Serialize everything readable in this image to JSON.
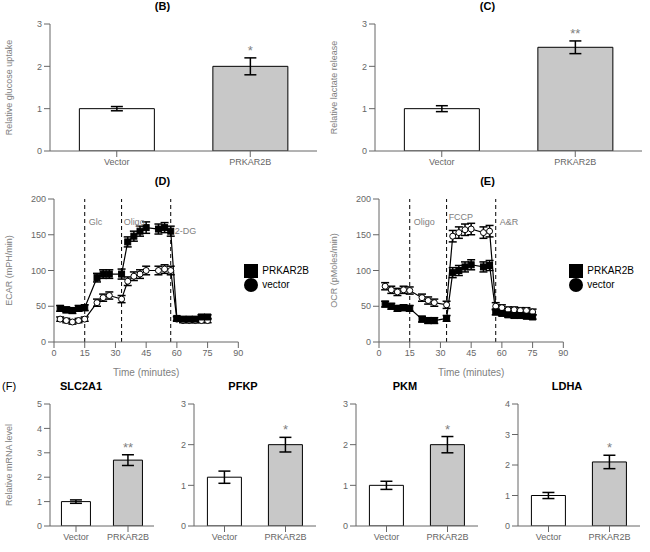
{
  "chart_data": [
    {
      "type": "bar",
      "title": "(B)",
      "ylabel": "Relative glucose uptake",
      "categories": [
        "Vector",
        "PRKAR2B"
      ],
      "values": [
        1.0,
        2.0
      ],
      "errors": [
        0.05,
        0.2
      ],
      "colors": [
        "#ffffff",
        "#c8c8c8"
      ],
      "ylim": [
        0,
        3
      ],
      "yticks": [
        0,
        1,
        2,
        3
      ],
      "annotations": [
        {
          "text": "*",
          "x": "PRKAR2B"
        }
      ]
    },
    {
      "type": "bar",
      "title": "(C)",
      "ylabel": "Relative lactate release",
      "categories": [
        "Vector",
        "PRKAR2B"
      ],
      "values": [
        1.0,
        2.45
      ],
      "errors": [
        0.07,
        0.15
      ],
      "colors": [
        "#ffffff",
        "#c8c8c8"
      ],
      "ylim": [
        0,
        3
      ],
      "yticks": [
        0,
        1,
        2,
        3
      ],
      "annotations": [
        {
          "text": "**",
          "x": "PRKAR2B"
        }
      ]
    },
    {
      "type": "line",
      "title": "(D)",
      "xlabel": "Time (minutes)",
      "ylabel": "ECAR (mPH/min)",
      "x": [
        3,
        6,
        9,
        12,
        15,
        21,
        24,
        27,
        33,
        36,
        39,
        42,
        45,
        51,
        54,
        57,
        60,
        63,
        66,
        69,
        72,
        75
      ],
      "series": [
        {
          "name": "vector",
          "color": "#000000",
          "marker": "circle",
          "values": [
            32,
            30,
            28,
            30,
            32,
            55,
            62,
            65,
            60,
            85,
            92,
            95,
            100,
            100,
            102,
            100,
            32,
            30,
            30,
            30,
            30,
            30
          ],
          "errors": [
            3,
            3,
            3,
            3,
            3,
            5,
            5,
            5,
            5,
            6,
            6,
            6,
            6,
            6,
            6,
            6,
            3,
            3,
            3,
            3,
            3,
            3
          ]
        },
        {
          "name": "PRKAR2B",
          "color": "#000000",
          "marker": "square",
          "values": [
            47,
            45,
            44,
            47,
            48,
            90,
            95,
            95,
            95,
            140,
            148,
            155,
            160,
            158,
            160,
            155,
            33,
            32,
            32,
            32,
            35,
            35
          ],
          "errors": [
            4,
            4,
            4,
            4,
            4,
            6,
            6,
            6,
            7,
            7,
            7,
            7,
            8,
            7,
            7,
            7,
            3,
            3,
            3,
            3,
            3,
            3
          ]
        }
      ],
      "xlim": [
        0,
        90
      ],
      "xticks": [
        0,
        15,
        30,
        45,
        60,
        75,
        90
      ],
      "ylim": [
        0,
        200
      ],
      "yticks": [
        0,
        50,
        100,
        150,
        200
      ],
      "vlines": [
        15,
        33,
        57
      ],
      "annotations": [
        {
          "text": "Glc",
          "x": 17,
          "y": 168
        },
        {
          "text": "Oligo",
          "x": 34,
          "y": 168
        },
        {
          "text": "2-DG",
          "x": 59,
          "y": 155
        }
      ],
      "legend": "right"
    },
    {
      "type": "line",
      "title": "(E)",
      "xlabel": "Time (minutes)",
      "ylabel": "OCR (pMoles/min)",
      "x": [
        3,
        6,
        9,
        12,
        15,
        21,
        24,
        27,
        33,
        36,
        39,
        42,
        45,
        51,
        54,
        57,
        60,
        63,
        66,
        69,
        72,
        75
      ],
      "series": [
        {
          "name": "vector",
          "color": "#000000",
          "marker": "circle",
          "values": [
            78,
            73,
            70,
            73,
            72,
            62,
            58,
            55,
            52,
            148,
            153,
            157,
            158,
            153,
            155,
            50,
            48,
            45,
            45,
            44,
            44,
            42
          ],
          "errors": [
            5,
            5,
            5,
            5,
            5,
            5,
            5,
            5,
            5,
            8,
            8,
            8,
            8,
            8,
            8,
            5,
            4,
            4,
            4,
            4,
            4,
            4
          ]
        },
        {
          "name": "PRKAR2B",
          "color": "#000000",
          "marker": "square",
          "values": [
            53,
            50,
            47,
            48,
            47,
            32,
            30,
            30,
            33,
            97,
            100,
            105,
            108,
            105,
            107,
            42,
            40,
            38,
            37,
            37,
            36,
            35
          ],
          "errors": [
            4,
            4,
            4,
            4,
            4,
            4,
            4,
            4,
            4,
            7,
            7,
            7,
            7,
            7,
            7,
            4,
            3,
            3,
            3,
            3,
            3,
            3
          ]
        }
      ],
      "xlim": [
        0,
        90
      ],
      "xticks": [
        0,
        15,
        30,
        45,
        60,
        75,
        90
      ],
      "ylim": [
        0,
        200
      ],
      "yticks": [
        0,
        50,
        100,
        150,
        200
      ],
      "vlines": [
        15,
        33,
        57
      ],
      "annotations": [
        {
          "text": "Oligo",
          "x": 17,
          "y": 168
        },
        {
          "text": "FCCP",
          "x": 34,
          "y": 175
        },
        {
          "text": "A&R",
          "x": 59,
          "y": 168
        }
      ],
      "legend": "right"
    },
    {
      "type": "bar",
      "title": "SLC2A1",
      "subtitle": "(F)",
      "ylabel": "Relative mRNA level",
      "categories": [
        "Vector",
        "PRKAR2B"
      ],
      "values": [
        1.0,
        2.7
      ],
      "errors": [
        0.07,
        0.22
      ],
      "colors": [
        "#ffffff",
        "#c8c8c8"
      ],
      "ylim": [
        0,
        5
      ],
      "yticks": [
        0,
        1,
        2,
        3,
        4,
        5
      ],
      "annotations": [
        {
          "text": "**",
          "x": "PRKAR2B"
        }
      ]
    },
    {
      "type": "bar",
      "title": "PFKP",
      "categories": [
        "Vector",
        "PRKAR2B"
      ],
      "values": [
        1.2,
        2.0
      ],
      "errors": [
        0.15,
        0.18
      ],
      "colors": [
        "#ffffff",
        "#c8c8c8"
      ],
      "ylim": [
        0,
        3
      ],
      "yticks": [
        0,
        1,
        2,
        3
      ],
      "annotations": [
        {
          "text": "*",
          "x": "PRKAR2B"
        }
      ]
    },
    {
      "type": "bar",
      "title": "PKM",
      "categories": [
        "Vector",
        "PRKAR2B"
      ],
      "values": [
        1.0,
        2.0
      ],
      "errors": [
        0.1,
        0.2
      ],
      "colors": [
        "#ffffff",
        "#c8c8c8"
      ],
      "ylim": [
        0,
        3
      ],
      "yticks": [
        0,
        1,
        2,
        3
      ],
      "annotations": [
        {
          "text": "*",
          "x": "PRKAR2B"
        }
      ]
    },
    {
      "type": "bar",
      "title": "LDHA",
      "categories": [
        "Vector",
        "PRKAR2B"
      ],
      "values": [
        1.0,
        2.1
      ],
      "errors": [
        0.1,
        0.22
      ],
      "colors": [
        "#ffffff",
        "#c8c8c8"
      ],
      "ylim": [
        0,
        4
      ],
      "yticks": [
        0,
        1,
        2,
        3,
        4
      ],
      "annotations": [
        {
          "text": "*",
          "x": "PRKAR2B"
        }
      ]
    }
  ]
}
